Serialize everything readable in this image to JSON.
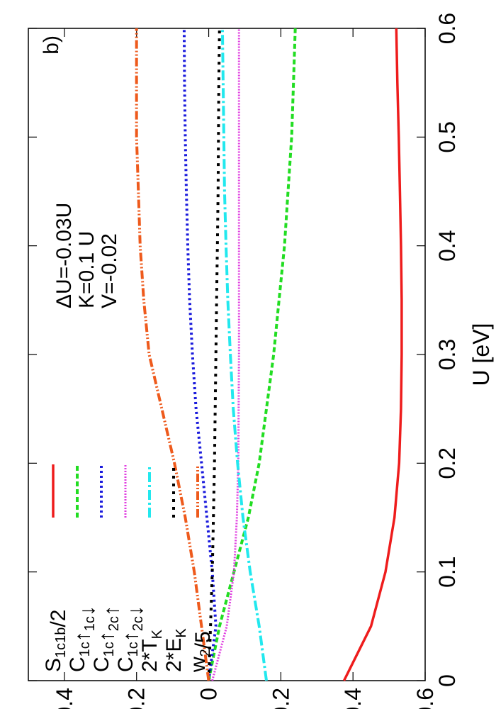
{
  "chart_data": {
    "type": "line",
    "title": "",
    "panel_label": "b)",
    "xlabel": "U [eV]",
    "ylabel": "",
    "xlim": [
      0,
      0.6
    ],
    "ylim": [
      -0.6,
      0.5
    ],
    "x_ticks": [
      0,
      0.1,
      0.2,
      0.3,
      0.4,
      0.5,
      0.6
    ],
    "x_tick_labels": [
      "0",
      "0.1",
      "0.2",
      "0.3",
      "0.4",
      "0.5",
      "0.6"
    ],
    "y_ticks": [
      -0.6,
      -0.4,
      -0.2,
      0,
      0.2,
      0.4
    ],
    "y_tick_labels": [
      "-0.6",
      "-0.4",
      "-0.2",
      "0",
      "0.2",
      "0.4"
    ],
    "grid": false,
    "orientation": "rotated 90 degrees counter-clockwise",
    "legend_position": "top-left",
    "annotations": [
      "ΔU=-0.03U",
      "K=0.1 U",
      "V=-0.02"
    ],
    "x": [
      0,
      0.05,
      0.1,
      0.15,
      0.2,
      0.25,
      0.3,
      0.35,
      0.4,
      0.45,
      0.5,
      0.55,
      0.6
    ],
    "series": [
      {
        "legend_parts": [
          {
            "t": "S"
          },
          {
            "t": "1c1b",
            "sub": true
          },
          {
            "t": "/2"
          }
        ],
        "color": "#ee1c1c",
        "style": "solid",
        "values": [
          -0.375,
          -0.45,
          -0.49,
          -0.515,
          -0.528,
          -0.533,
          -0.535,
          -0.535,
          -0.533,
          -0.53,
          -0.527,
          -0.523,
          -0.52
        ]
      },
      {
        "legend_parts": [
          {
            "t": "C"
          },
          {
            "t": "1c",
            "sub": true
          },
          {
            "t": "↑"
          },
          {
            "t": "1c",
            "sub": true
          },
          {
            "t": "↓"
          }
        ],
        "color": "#22dd22",
        "style": "dashed",
        "values": [
          0,
          -0.03,
          -0.07,
          -0.11,
          -0.14,
          -0.16,
          -0.18,
          -0.195,
          -0.21,
          -0.22,
          -0.23,
          -0.235,
          -0.24
        ]
      },
      {
        "legend_parts": [
          {
            "t": "C"
          },
          {
            "t": "1c",
            "sub": true
          },
          {
            "t": "↑"
          },
          {
            "t": "2c",
            "sub": true
          },
          {
            "t": "↑"
          }
        ],
        "color": "#1a1adc",
        "style": "dotted",
        "values": [
          0,
          -0.02,
          -0.01,
          0.005,
          0.02,
          0.035,
          0.045,
          0.053,
          0.058,
          0.062,
          0.065,
          0.067,
          0.068
        ]
      },
      {
        "legend_parts": [
          {
            "t": "C"
          },
          {
            "t": "1c",
            "sub": true
          },
          {
            "t": "↑"
          },
          {
            "t": "2c",
            "sub": true
          },
          {
            "t": "↓"
          }
        ],
        "color": "#e040e0",
        "style": "dotted-fine",
        "values": [
          -0.01,
          -0.05,
          -0.07,
          -0.078,
          -0.082,
          -0.083,
          -0.084,
          -0.084,
          -0.084,
          -0.084,
          -0.084,
          -0.084,
          -0.084
        ]
      },
      {
        "legend_parts": [
          {
            "t": "2*T"
          },
          {
            "t": "K",
            "sub": true
          }
        ],
        "color": "#22e8ee",
        "style": "dash-dot",
        "values": [
          -0.16,
          -0.14,
          -0.115,
          -0.095,
          -0.08,
          -0.068,
          -0.06,
          -0.053,
          -0.048,
          -0.044,
          -0.042,
          -0.04,
          -0.038
        ]
      },
      {
        "legend_parts": [
          {
            "t": "2*E"
          },
          {
            "t": "K",
            "sub": true
          }
        ],
        "color": "#000000",
        "style": "dotted-black",
        "values": [
          0,
          -0.005,
          -0.01,
          -0.013,
          -0.016,
          -0.018,
          -0.02,
          -0.022,
          -0.024,
          -0.026,
          -0.027,
          -0.028,
          -0.03
        ]
      },
      {
        "legend_parts": [
          {
            "t": "w"
          },
          {
            "t": "2",
            "sub": true
          },
          {
            "t": "/5"
          }
        ],
        "color": "#ee5a1c",
        "style": "dash-dot-dot",
        "values": [
          0,
          0.02,
          0.04,
          0.065,
          0.095,
          0.13,
          0.165,
          0.18,
          0.19,
          0.195,
          0.2,
          0.2,
          0.2
        ]
      }
    ]
  }
}
